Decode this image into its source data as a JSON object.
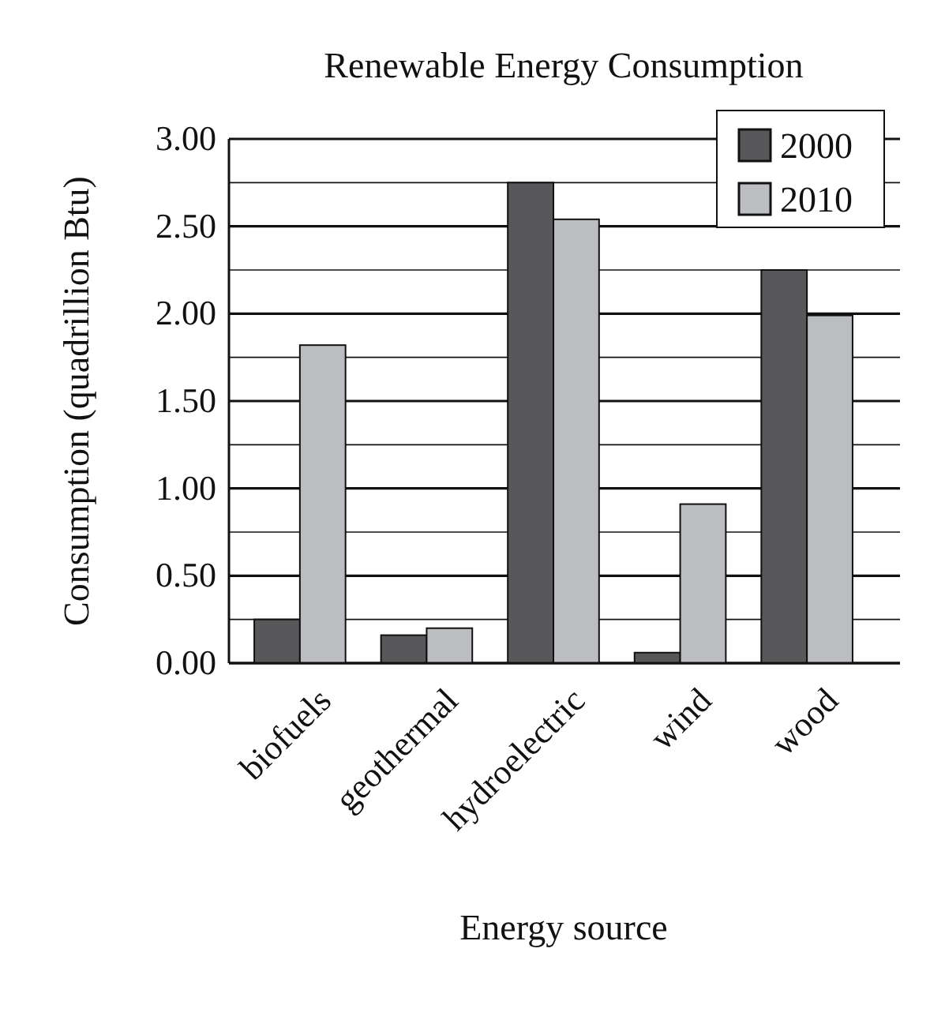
{
  "chart_data": {
    "type": "bar",
    "title": "Renewable Energy Consumption",
    "xlabel": "Energy source",
    "ylabel": "Consumption (quadrillion Btu)",
    "categories": [
      "biofuels",
      "geothermal",
      "hydroelectric",
      "wind",
      "wood"
    ],
    "series": [
      {
        "name": "2000",
        "color": "#58585a",
        "values": [
          0.25,
          0.16,
          2.75,
          0.06,
          2.25
        ]
      },
      {
        "name": "2010",
        "color": "#bcbdc0",
        "values": [
          1.82,
          0.2,
          2.54,
          0.91,
          1.99
        ]
      }
    ],
    "ylim": [
      0,
      3
    ],
    "yticks": [
      {
        "value": 0,
        "label": "0.00"
      },
      {
        "value": 0.25,
        "label": null
      },
      {
        "value": 0.5,
        "label": "0.50"
      },
      {
        "value": 0.75,
        "label": null
      },
      {
        "value": 1,
        "label": "1.00"
      },
      {
        "value": 1.25,
        "label": null
      },
      {
        "value": 1.5,
        "label": "1.50"
      },
      {
        "value": 1.75,
        "label": null
      },
      {
        "value": 2,
        "label": "2.00"
      },
      {
        "value": 2.25,
        "label": null
      },
      {
        "value": 2.5,
        "label": "2.50"
      },
      {
        "value": 2.75,
        "label": null
      },
      {
        "value": 3,
        "label": "3.00"
      }
    ],
    "grid": "y",
    "legend": "top right"
  }
}
